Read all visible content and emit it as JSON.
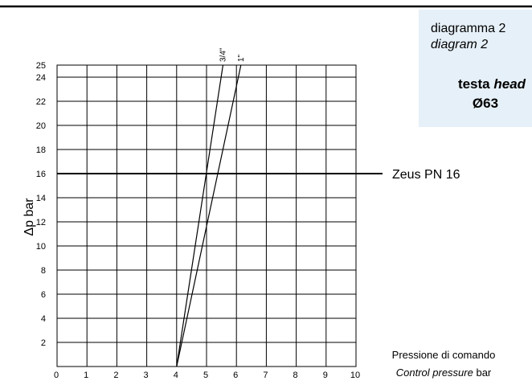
{
  "chart_data": {
    "type": "line",
    "panel": {
      "line1": "diagramma 2",
      "line2": "diagram 2",
      "head_it": "testa",
      "head_en": "head",
      "size": "Ø63"
    },
    "ylabel": "Δp bar",
    "xlabel": {
      "it": "Pressione di comando",
      "en": "Control pressure",
      "unit": "bar"
    },
    "xlim": [
      0,
      10
    ],
    "xticks": [
      0,
      1,
      2,
      3,
      4,
      5,
      6,
      7,
      8,
      9,
      10
    ],
    "ylim": [
      0,
      25
    ],
    "yticks": [
      2,
      4,
      6,
      8,
      10,
      12,
      14,
      16,
      18,
      20,
      22,
      24,
      25
    ],
    "grid": true,
    "series": [
      {
        "name": "3/4\"",
        "color": "#000000",
        "x": [
          4,
          5.55
        ],
        "values": [
          0,
          25
        ]
      },
      {
        "name": "1\"",
        "color": "#000000",
        "x": [
          4,
          6.15
        ],
        "values": [
          0,
          25
        ]
      }
    ],
    "hline": {
      "label": "Zeus PN 16",
      "value": 16,
      "color": "#000000"
    }
  }
}
